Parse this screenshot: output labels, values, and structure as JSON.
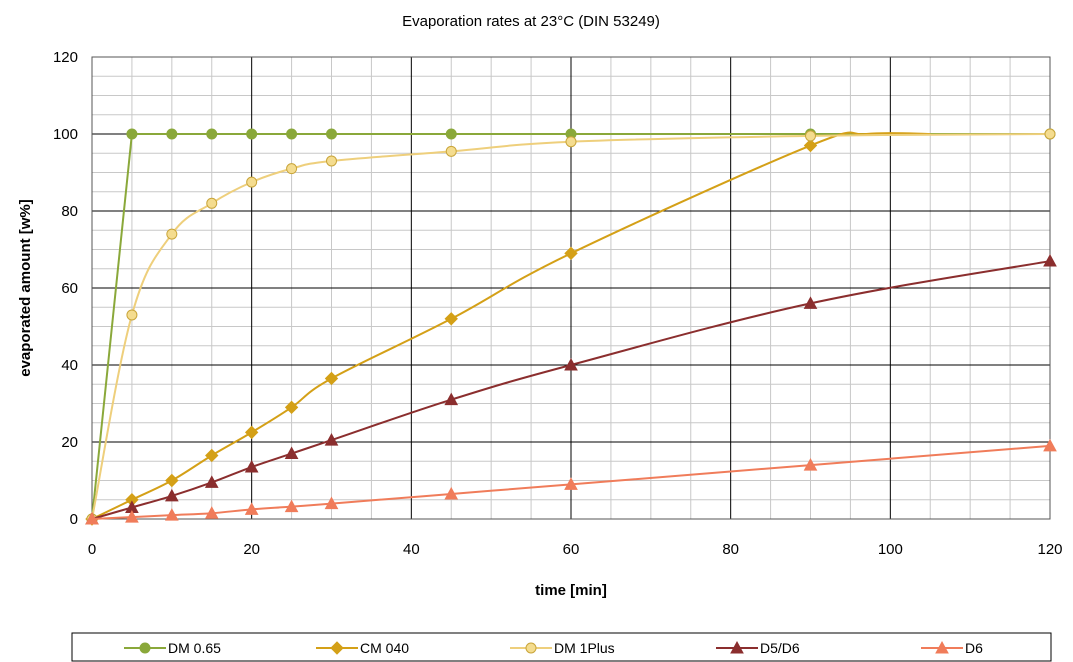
{
  "chart_data": {
    "type": "line",
    "title": "Evaporation rates at 23°C (DIN 53249)",
    "xlabel": "time [min]",
    "ylabel": "evaporated amount [w%]",
    "xlim": [
      0,
      120
    ],
    "ylim": [
      0,
      120
    ],
    "x_ticks": [
      0,
      20,
      40,
      60,
      80,
      100,
      120
    ],
    "y_ticks": [
      0,
      20,
      40,
      60,
      80,
      100,
      120
    ],
    "grid": true,
    "legend_position": "bottom",
    "series": [
      {
        "name": "DM 0.65",
        "color": "#8aa83a",
        "marker": "circle",
        "marker_fill": "#8aa83a",
        "smooth": false,
        "line": [
          [
            0,
            0
          ],
          [
            5,
            100
          ],
          [
            10,
            100
          ],
          [
            15,
            100
          ],
          [
            20,
            100
          ],
          [
            25,
            100
          ],
          [
            30,
            100
          ],
          [
            45,
            100
          ],
          [
            60,
            100
          ],
          [
            90,
            100
          ],
          [
            120,
            100
          ]
        ],
        "points": [
          [
            0,
            0
          ],
          [
            5,
            100
          ],
          [
            10,
            100
          ],
          [
            15,
            100
          ],
          [
            20,
            100
          ],
          [
            25,
            100
          ],
          [
            30,
            100
          ],
          [
            45,
            100
          ],
          [
            60,
            100
          ],
          [
            90,
            100
          ],
          [
            120,
            100
          ]
        ]
      },
      {
        "name": "CM 040",
        "color": "#d4a017",
        "marker": "diamond",
        "marker_fill": "#d4a017",
        "smooth": true,
        "line": [
          [
            0,
            0
          ],
          [
            5,
            5
          ],
          [
            10,
            10
          ],
          [
            15,
            16.5
          ],
          [
            20,
            22.5
          ],
          [
            25,
            29
          ],
          [
            30,
            36.5
          ],
          [
            45,
            52
          ],
          [
            60,
            69
          ],
          [
            90,
            97
          ],
          [
            97,
            100
          ],
          [
            105,
            100
          ]
        ],
        "points": [
          [
            0,
            0
          ],
          [
            5,
            5
          ],
          [
            10,
            10
          ],
          [
            15,
            16.5
          ],
          [
            20,
            22.5
          ],
          [
            25,
            29
          ],
          [
            30,
            36.5
          ],
          [
            45,
            52
          ],
          [
            60,
            69
          ],
          [
            90,
            97
          ]
        ]
      },
      {
        "name": "DM 1Plus",
        "color": "#eecf7c",
        "marker": "circle",
        "marker_fill": "#f4dc8f",
        "marker_stroke": "#c9a53a",
        "smooth": true,
        "line": [
          [
            0,
            0
          ],
          [
            5,
            53
          ],
          [
            10,
            74
          ],
          [
            15,
            82
          ],
          [
            20,
            87.5
          ],
          [
            25,
            91
          ],
          [
            30,
            93
          ],
          [
            45,
            95.5
          ],
          [
            60,
            98
          ],
          [
            90,
            99.5
          ],
          [
            120,
            100
          ]
        ],
        "points": [
          [
            0,
            0
          ],
          [
            5,
            53
          ],
          [
            10,
            74
          ],
          [
            15,
            82
          ],
          [
            20,
            87.5
          ],
          [
            25,
            91
          ],
          [
            30,
            93
          ],
          [
            45,
            95.5
          ],
          [
            60,
            98
          ],
          [
            90,
            99.5
          ],
          [
            120,
            100
          ]
        ]
      },
      {
        "name": "D5/D6",
        "color": "#8b2e2e",
        "marker": "triangle",
        "marker_fill": "#8b2e2e",
        "smooth": true,
        "line": [
          [
            0,
            0
          ],
          [
            5,
            3
          ],
          [
            10,
            6
          ],
          [
            15,
            9.5
          ],
          [
            20,
            13.5
          ],
          [
            25,
            17
          ],
          [
            30,
            20.5
          ],
          [
            45,
            31
          ],
          [
            60,
            40
          ],
          [
            90,
            56
          ],
          [
            120,
            67
          ]
        ],
        "points": [
          [
            0,
            0
          ],
          [
            5,
            3
          ],
          [
            10,
            6
          ],
          [
            15,
            9.5
          ],
          [
            20,
            13.5
          ],
          [
            25,
            17
          ],
          [
            30,
            20.5
          ],
          [
            45,
            31
          ],
          [
            60,
            40
          ],
          [
            90,
            56
          ],
          [
            120,
            67
          ]
        ]
      },
      {
        "name": "D6",
        "color": "#f07c5a",
        "marker": "triangle",
        "marker_fill": "#f07c5a",
        "smooth": true,
        "line": [
          [
            0,
            0
          ],
          [
            5,
            0.5
          ],
          [
            10,
            1
          ],
          [
            15,
            1.5
          ],
          [
            20,
            2.5
          ],
          [
            25,
            3.2
          ],
          [
            30,
            4
          ],
          [
            45,
            6.5
          ],
          [
            60,
            9
          ],
          [
            90,
            14
          ],
          [
            120,
            19
          ]
        ],
        "points": [
          [
            0,
            0
          ],
          [
            5,
            0.5
          ],
          [
            10,
            1
          ],
          [
            15,
            1.5
          ],
          [
            20,
            2.5
          ],
          [
            25,
            3.2
          ],
          [
            30,
            4
          ],
          [
            45,
            6.5
          ],
          [
            60,
            9
          ],
          [
            90,
            14
          ],
          [
            120,
            19
          ]
        ]
      }
    ]
  }
}
